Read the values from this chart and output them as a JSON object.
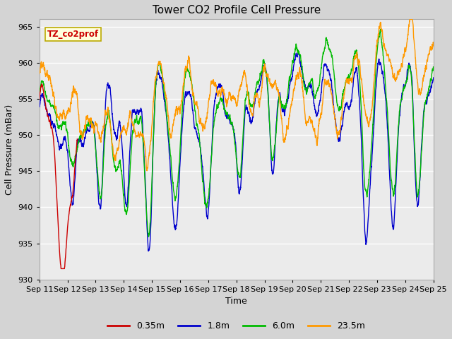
{
  "title": "Tower CO2 Profile Cell Pressure",
  "ylabel": "Cell Pressure (mBar)",
  "xlabel": "Time",
  "annotation_text": "TZ_co2prof",
  "annotation_color": "#cc0000",
  "annotation_bg": "#ffffdd",
  "annotation_border": "#bbaa00",
  "ylim": [
    930,
    966
  ],
  "yticks": [
    930,
    935,
    940,
    945,
    950,
    955,
    960,
    965
  ],
  "xlim": [
    11,
    25
  ],
  "xtick_labels": [
    "Sep 11",
    "Sep 12",
    "Sep 13",
    "Sep 14",
    "Sep 15",
    "Sep 16",
    "Sep 17",
    "Sep 18",
    "Sep 19",
    "Sep 20",
    "Sep 21",
    "Sep 22",
    "Sep 23",
    "Sep 24",
    "Sep 25"
  ],
  "line_colors": [
    "#cc0000",
    "#0000cc",
    "#00bb00",
    "#ff9900"
  ],
  "line_labels": [
    "0.35m",
    "1.8m",
    "6.0m",
    "23.5m"
  ],
  "line_width": 1.0,
  "plot_bg": "#ebebeb",
  "fig_bg": "#d4d4d4",
  "grid_color": "#ffffff",
  "title_fontsize": 11,
  "label_fontsize": 9,
  "tick_fontsize": 8
}
